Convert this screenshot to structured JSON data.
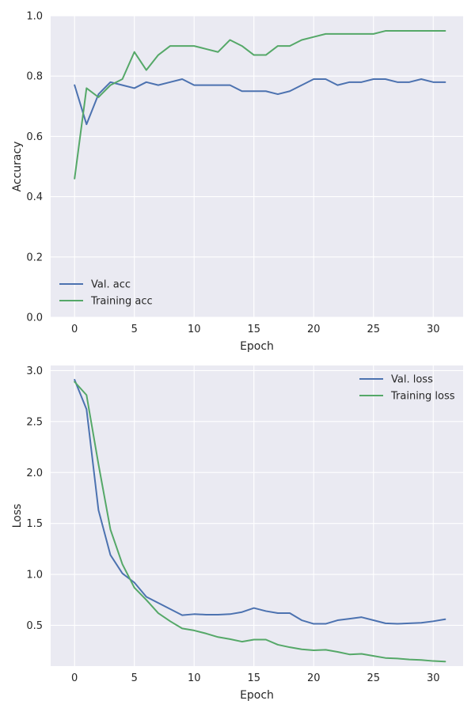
{
  "chart_data": [
    {
      "type": "line",
      "xlabel": "Epoch",
      "ylabel": "Accuracy",
      "xlim": [
        -2,
        32.5
      ],
      "ylim": [
        0,
        1
      ],
      "xticks": [
        0,
        5,
        10,
        15,
        20,
        25,
        30
      ],
      "yticks": [
        0.0,
        0.2,
        0.4,
        0.6,
        0.8,
        1.0
      ],
      "ytick_labels": [
        "0.0",
        "0.2",
        "0.4",
        "0.6",
        "0.8",
        "1.0"
      ],
      "grid": true,
      "legend_position": "lower-left",
      "x": [
        0,
        1,
        2,
        3,
        4,
        5,
        6,
        7,
        8,
        9,
        10,
        11,
        12,
        13,
        14,
        15,
        16,
        17,
        18,
        19,
        20,
        21,
        22,
        23,
        24,
        25,
        26,
        27,
        28,
        29,
        30,
        31
      ],
      "series": [
        {
          "name": "Val. acc",
          "color": "#4c72b0",
          "values": [
            0.77,
            0.64,
            0.74,
            0.78,
            0.77,
            0.76,
            0.78,
            0.77,
            0.78,
            0.79,
            0.77,
            0.77,
            0.77,
            0.77,
            0.75,
            0.75,
            0.75,
            0.74,
            0.75,
            0.77,
            0.79,
            0.79,
            0.77,
            0.78,
            0.78,
            0.79,
            0.79,
            0.78,
            0.78,
            0.79,
            0.78,
            0.78
          ]
        },
        {
          "name": "Training acc",
          "color": "#55a868",
          "values": [
            0.46,
            0.76,
            0.73,
            0.77,
            0.79,
            0.88,
            0.82,
            0.87,
            0.9,
            0.9,
            0.9,
            0.89,
            0.88,
            0.92,
            0.9,
            0.87,
            0.87,
            0.9,
            0.9,
            0.92,
            0.93,
            0.94,
            0.94,
            0.94,
            0.94,
            0.94,
            0.95,
            0.95,
            0.95,
            0.95,
            0.95,
            0.95
          ]
        }
      ]
    },
    {
      "type": "line",
      "xlabel": "Epoch",
      "ylabel": "Loss",
      "xlim": [
        -2,
        32.5
      ],
      "ylim": [
        0.1,
        3.05
      ],
      "xticks": [
        0,
        5,
        10,
        15,
        20,
        25,
        30
      ],
      "yticks": [
        0.5,
        1.0,
        1.5,
        2.0,
        2.5,
        3.0
      ],
      "ytick_labels": [
        "0.5",
        "1.0",
        "1.5",
        "2.0",
        "2.5",
        "3.0"
      ],
      "grid": true,
      "legend_position": "upper-right",
      "x": [
        0,
        1,
        2,
        3,
        4,
        5,
        6,
        7,
        8,
        9,
        10,
        11,
        12,
        13,
        14,
        15,
        16,
        17,
        18,
        19,
        20,
        21,
        22,
        23,
        24,
        25,
        26,
        27,
        28,
        29,
        30,
        31
      ],
      "series": [
        {
          "name": "Val. loss",
          "color": "#4c72b0",
          "values": [
            2.91,
            2.62,
            1.63,
            1.19,
            1.01,
            0.92,
            0.78,
            0.72,
            0.66,
            0.6,
            0.61,
            0.605,
            0.605,
            0.61,
            0.63,
            0.67,
            0.64,
            0.62,
            0.62,
            0.55,
            0.515,
            0.515,
            0.55,
            0.565,
            0.58,
            0.55,
            0.52,
            0.515,
            0.52,
            0.525,
            0.54,
            0.56
          ]
        },
        {
          "name": "Training loss",
          "color": "#55a868",
          "values": [
            2.89,
            2.76,
            2.08,
            1.44,
            1.1,
            0.87,
            0.75,
            0.62,
            0.54,
            0.47,
            0.45,
            0.42,
            0.385,
            0.365,
            0.34,
            0.36,
            0.36,
            0.31,
            0.285,
            0.265,
            0.255,
            0.26,
            0.24,
            0.215,
            0.22,
            0.2,
            0.18,
            0.175,
            0.165,
            0.16,
            0.15,
            0.145
          ]
        }
      ]
    }
  ]
}
